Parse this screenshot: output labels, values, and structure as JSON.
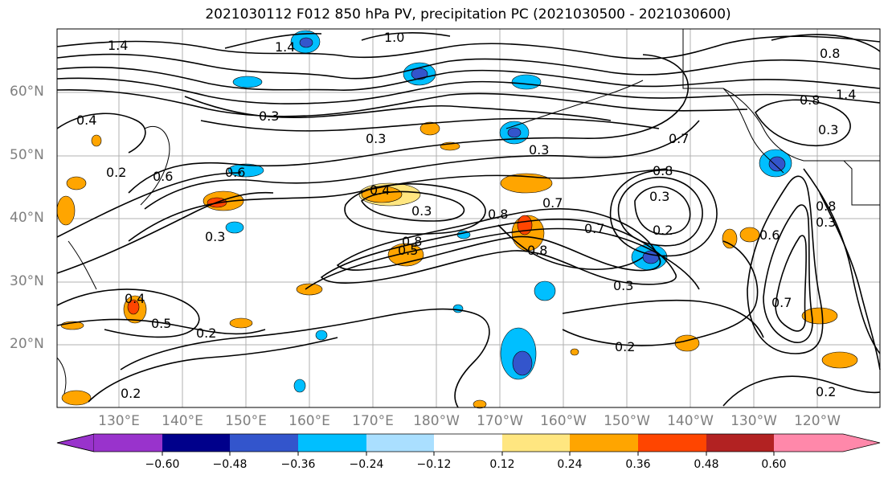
{
  "title": "2021030112 F012 850 hPa PV, precipitation PC (2021030500 - 2021030600)",
  "latitude_labels": [
    "60°N",
    "50°N",
    "40°N",
    "30°N",
    "20°N"
  ],
  "longitude_labels": [
    "130°E",
    "140°E",
    "150°E",
    "160°E",
    "170°E",
    "180°W",
    "170°W",
    "160°W",
    "150°W",
    "140°W",
    "130°W",
    "120°W"
  ],
  "colorbar": {
    "colors": [
      "#9933cc",
      "#00008b",
      "#3355cc",
      "#00bfff",
      "#aadfff",
      "#ffffff",
      "#ffe680",
      "#ffa500",
      "#ff4500",
      "#b22222",
      "#ff88aa"
    ],
    "ticks": [
      "−0.60",
      "−0.48",
      "−0.36",
      "−0.24",
      "−0.12",
      "0.12",
      "0.24",
      "0.36",
      "0.48",
      "0.60"
    ]
  },
  "contour_labels": [
    "1.4",
    "1.4",
    "1.0",
    "0.8",
    "0.8",
    "1.4",
    "0.4",
    "0.3",
    "0.3",
    "0.3",
    "0.3",
    "0.7",
    "0.8",
    "0.2",
    "0.6",
    "0.6",
    "0.3",
    "0.4",
    "0.3",
    "0.8",
    "0.7",
    "0.8",
    "0.7",
    "0.3",
    "0.2",
    "0.5",
    "0.8",
    "0.3",
    "0.8",
    "0.4",
    "0.5",
    "0.2",
    "0.2",
    "0.6",
    "0.7",
    "0.3",
    "0.2",
    "0.2"
  ],
  "colors": {
    "contour": "#000000",
    "grid": "#b0b0b0",
    "tick_label": "#7f7f7f"
  }
}
